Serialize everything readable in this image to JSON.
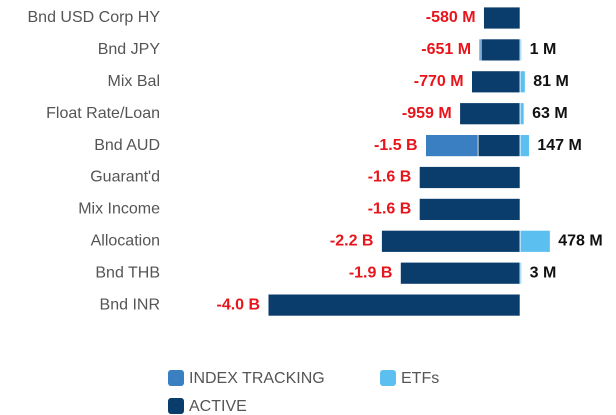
{
  "chart_data": {
    "type": "diverging-stacked-bar",
    "categories": [
      "Bnd USD Corp HY",
      "Bnd JPY",
      "Mix Bal",
      "Float Rate/Loan",
      "Bnd AUD",
      "Guarant'd",
      "Mix Income",
      "Allocation",
      "Bnd THB",
      "Bnd INR"
    ],
    "series": [
      {
        "name": "INDEX TRACKING",
        "color": "#3a7fc1",
        "values": [
          0,
          -31,
          0,
          0,
          -833,
          0,
          0,
          0,
          0,
          0
        ]
      },
      {
        "name": "ETFs",
        "color": "#5bc0f0",
        "values": [
          0,
          1,
          81,
          63,
          147,
          0,
          0,
          478,
          3,
          0
        ]
      },
      {
        "name": "ACTIVE",
        "color": "#0a3d6b",
        "values": [
          -580,
          -620,
          -770,
          -959,
          -667,
          -1600,
          -1600,
          -2200,
          -1900,
          -4000
        ]
      }
    ],
    "negative_totals": {
      "values": [
        -580,
        -651,
        -770,
        -959,
        -1500,
        -1600,
        -1600,
        -2200,
        -1900,
        -4000
      ],
      "value_labels": [
        "-580 M",
        "-651 M",
        "-770 M",
        "-959 M",
        "-1.5 B",
        "-1.6 B",
        "-1.6 B",
        "-2.2 B",
        "-1.9 B",
        "-4.0 B"
      ]
    },
    "positive_totals": {
      "values": [
        null,
        1,
        81,
        63,
        147,
        null,
        null,
        478,
        3,
        null
      ],
      "value_labels": [
        null,
        "1 M",
        "81 M",
        "63 M",
        "147 M",
        null,
        null,
        "478 M",
        "3 M",
        null
      ]
    },
    "xlim": [
      -4160,
      1490
    ]
  }
}
